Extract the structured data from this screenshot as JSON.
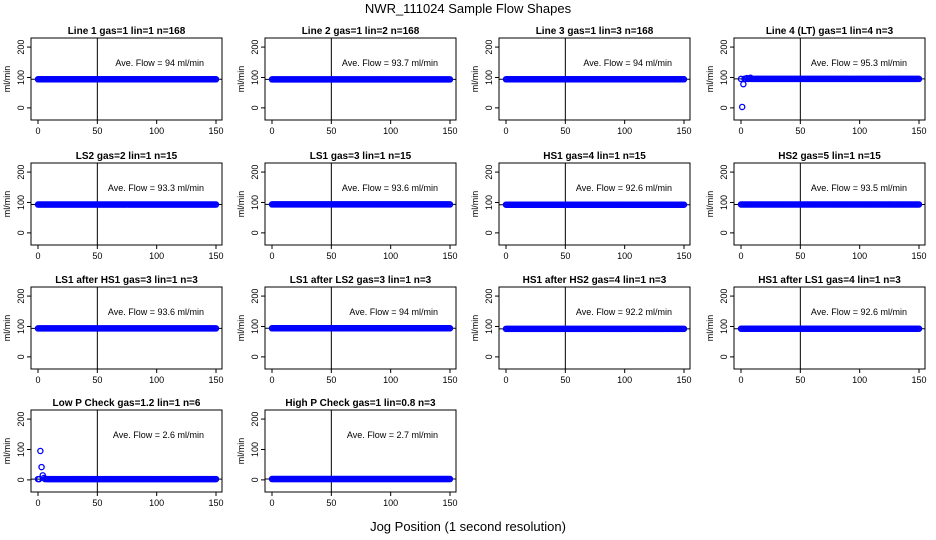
{
  "figure": {
    "title": "NWR_111024  Sample Flow Shapes",
    "xlabel": "Jog Position (1 second resolution)"
  },
  "chart_data": [
    {
      "type": "scatter",
      "title": "Line 1 gas=1 lin=1 n=168",
      "ylabel": "ml/min",
      "xlim": [
        0,
        150
      ],
      "ylim": [
        -30,
        220
      ],
      "xticks": [
        0,
        50,
        100,
        150
      ],
      "yticks": [
        0,
        100,
        200
      ],
      "vline": 50,
      "hline": 94,
      "annotation": "Ave. Flow = 94  ml/min",
      "baseline": 94,
      "color": "#0000ff",
      "outliers": []
    },
    {
      "type": "scatter",
      "title": "Line 2 gas=1 lin=2 n=168",
      "ylabel": "ml/min",
      "xlim": [
        0,
        150
      ],
      "ylim": [
        -30,
        220
      ],
      "xticks": [
        0,
        50,
        100,
        150
      ],
      "yticks": [
        0,
        100,
        200
      ],
      "vline": 50,
      "hline": 93.7,
      "annotation": "Ave. Flow = 93.7  ml/min",
      "baseline": 93.7,
      "color": "#0000ff",
      "outliers": []
    },
    {
      "type": "scatter",
      "title": "Line 3 gas=1 lin=3 n=168",
      "ylabel": "ml/min",
      "xlim": [
        0,
        150
      ],
      "ylim": [
        -30,
        220
      ],
      "xticks": [
        0,
        50,
        100,
        150
      ],
      "yticks": [
        0,
        100,
        200
      ],
      "vline": 50,
      "hline": 94,
      "annotation": "Ave. Flow = 94  ml/min",
      "baseline": 94,
      "color": "#0000ff",
      "outliers": []
    },
    {
      "type": "scatter",
      "title": "Line 4 (LT) gas=1 lin=4 n=3",
      "ylabel": "ml/min",
      "xlim": [
        0,
        150
      ],
      "ylim": [
        -30,
        220
      ],
      "xticks": [
        0,
        50,
        100,
        150
      ],
      "yticks": [
        0,
        100,
        200
      ],
      "vline": 50,
      "hline": 95.3,
      "annotation": "Ave. Flow = 95.3  ml/min",
      "baseline": 95.3,
      "color": "#0000ff",
      "outliers": [
        [
          1,
          3
        ],
        [
          2,
          78
        ],
        [
          3,
          96
        ],
        [
          5,
          98
        ],
        [
          8,
          99
        ]
      ]
    },
    {
      "type": "scatter",
      "title": "LS2 gas=2 lin=1 n=15",
      "ylabel": "ml/min",
      "xlim": [
        0,
        150
      ],
      "ylim": [
        -30,
        220
      ],
      "xticks": [
        0,
        50,
        100,
        150
      ],
      "yticks": [
        0,
        100,
        200
      ],
      "vline": 50,
      "hline": 93.3,
      "annotation": "Ave. Flow = 93.3  ml/min",
      "baseline": 93.3,
      "color": "#0000ff",
      "outliers": []
    },
    {
      "type": "scatter",
      "title": "LS1 gas=3 lin=1 n=15",
      "ylabel": "ml/min",
      "xlim": [
        0,
        150
      ],
      "ylim": [
        -30,
        220
      ],
      "xticks": [
        0,
        50,
        100,
        150
      ],
      "yticks": [
        0,
        100,
        200
      ],
      "vline": 50,
      "hline": 93.6,
      "annotation": "Ave. Flow = 93.6  ml/min",
      "baseline": 93.6,
      "color": "#0000ff",
      "outliers": []
    },
    {
      "type": "scatter",
      "title": "HS1 gas=4 lin=1 n=15",
      "ylabel": "ml/min",
      "xlim": [
        0,
        150
      ],
      "ylim": [
        -30,
        220
      ],
      "xticks": [
        0,
        50,
        100,
        150
      ],
      "yticks": [
        0,
        100,
        200
      ],
      "vline": 50,
      "hline": 92.6,
      "annotation": "Ave. Flow = 92.6  ml/min",
      "baseline": 92.6,
      "color": "#0000ff",
      "outliers": []
    },
    {
      "type": "scatter",
      "title": "HS2 gas=5 lin=1 n=15",
      "ylabel": "ml/min",
      "xlim": [
        0,
        150
      ],
      "ylim": [
        -30,
        220
      ],
      "xticks": [
        0,
        50,
        100,
        150
      ],
      "yticks": [
        0,
        100,
        200
      ],
      "vline": 50,
      "hline": 93.5,
      "annotation": "Ave. Flow = 93.5  ml/min",
      "baseline": 93.5,
      "color": "#0000ff",
      "outliers": []
    },
    {
      "type": "scatter",
      "title": "LS1 after HS1 gas=3 lin=1 n=3",
      "ylabel": "ml/min",
      "xlim": [
        0,
        150
      ],
      "ylim": [
        -30,
        220
      ],
      "xticks": [
        0,
        50,
        100,
        150
      ],
      "yticks": [
        0,
        100,
        200
      ],
      "vline": 50,
      "hline": 93.6,
      "annotation": "Ave. Flow = 93.6  ml/min",
      "baseline": 93.6,
      "color": "#0000ff",
      "outliers": []
    },
    {
      "type": "scatter",
      "title": "LS1 after LS2 gas=3 lin=1 n=3",
      "ylabel": "ml/min",
      "xlim": [
        0,
        150
      ],
      "ylim": [
        -30,
        220
      ],
      "xticks": [
        0,
        50,
        100,
        150
      ],
      "yticks": [
        0,
        100,
        200
      ],
      "vline": 50,
      "hline": 94,
      "annotation": "Ave. Flow = 94  ml/min",
      "baseline": 94,
      "color": "#0000ff",
      "outliers": []
    },
    {
      "type": "scatter",
      "title": "HS1 after HS2 gas=4 lin=1 n=3",
      "ylabel": "ml/min",
      "xlim": [
        0,
        150
      ],
      "ylim": [
        -30,
        220
      ],
      "xticks": [
        0,
        50,
        100,
        150
      ],
      "yticks": [
        0,
        100,
        200
      ],
      "vline": 50,
      "hline": 92.2,
      "annotation": "Ave. Flow = 92.2  ml/min",
      "baseline": 92.2,
      "color": "#0000ff",
      "outliers": []
    },
    {
      "type": "scatter",
      "title": "HS1 after LS1 gas=4 lin=1 n=3",
      "ylabel": "ml/min",
      "xlim": [
        0,
        150
      ],
      "ylim": [
        -30,
        220
      ],
      "xticks": [
        0,
        50,
        100,
        150
      ],
      "yticks": [
        0,
        100,
        200
      ],
      "vline": 50,
      "hline": 92.6,
      "annotation": "Ave. Flow = 92.6  ml/min",
      "baseline": 92.6,
      "color": "#0000ff",
      "outliers": []
    },
    {
      "type": "scatter",
      "title": "Low P Check gas=1.2 lin=1 n=6",
      "ylabel": "ml/min",
      "xlim": [
        0,
        150
      ],
      "ylim": [
        -30,
        220
      ],
      "xticks": [
        0,
        50,
        100,
        150
      ],
      "yticks": [
        0,
        100,
        200
      ],
      "vline": 50,
      "hline": 2.6,
      "annotation": "Ave. Flow = 2.6  ml/min",
      "baseline": 2.6,
      "color": "#0000ff",
      "outliers": [
        [
          2,
          95
        ],
        [
          3,
          42
        ],
        [
          4,
          15
        ],
        [
          5,
          6
        ],
        [
          7,
          3
        ]
      ]
    },
    {
      "type": "scatter",
      "title": "High P Check gas=1 lin=0.8 n=3",
      "ylabel": "ml/min",
      "xlim": [
        0,
        150
      ],
      "ylim": [
        -30,
        220
      ],
      "xticks": [
        0,
        50,
        100,
        150
      ],
      "yticks": [
        0,
        100,
        200
      ],
      "vline": 50,
      "hline": 2.7,
      "annotation": "Ave. Flow = 2.7  ml/min",
      "baseline": 2.7,
      "color": "#0000ff",
      "outliers": []
    }
  ]
}
